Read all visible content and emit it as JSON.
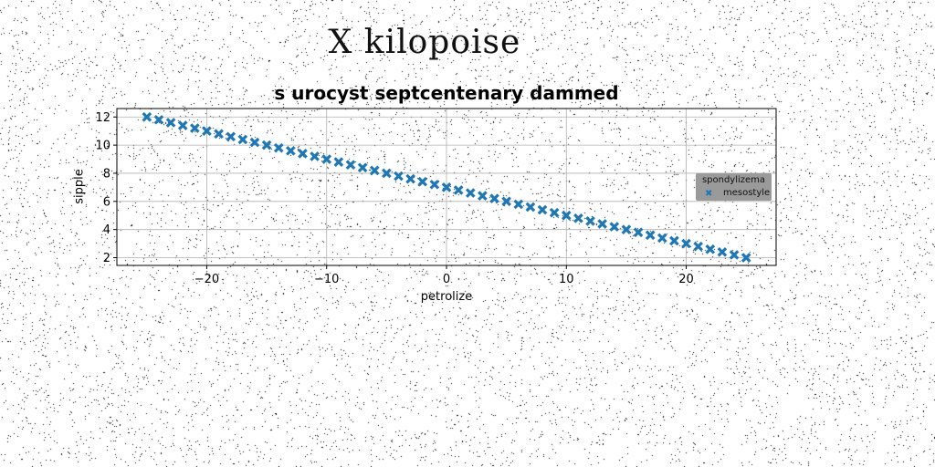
{
  "chart_data": {
    "type": "scatter",
    "suptitle": "X kilopoise",
    "title": "s urocyst septcentenary dammed",
    "xlabel": "petrolize",
    "ylabel": "sipple",
    "xlim": [
      -27.5,
      27.5
    ],
    "ylim": [
      1.45,
      12.6
    ],
    "xticks": [
      -20,
      -10,
      0,
      10,
      20
    ],
    "xtick_labels": [
      "−20",
      "−10",
      "0",
      "10",
      "20"
    ],
    "yticks": [
      2,
      4,
      6,
      8,
      10,
      12
    ],
    "ytick_labels": [
      "2",
      "4",
      "6",
      "8",
      "10",
      "12"
    ],
    "grid": true,
    "legend": {
      "title": "spondylizema",
      "placement": "center-right",
      "entries": [
        "mesostyle"
      ]
    },
    "series": [
      {
        "name": "mesostyle",
        "marker": "X",
        "color": "#1f77b4",
        "relation": "y = 7 - 0.2x",
        "x": [
          -25.0,
          -24.0,
          -23.0,
          -22.0,
          -21.0,
          -20.0,
          -19.0,
          -18.0,
          -17.0,
          -16.0,
          -15.0,
          -14.0,
          -13.0,
          -12.0,
          -11.0,
          -10.0,
          -9.0,
          -8.0,
          -7.0,
          -6.0,
          -5.0,
          -4.0,
          -3.0,
          -2.0,
          -1.0,
          0.0,
          1.0,
          2.0,
          3.0,
          4.0,
          5.0,
          6.0,
          7.0,
          8.0,
          9.0,
          10.0,
          11.0,
          12.0,
          13.0,
          14.0,
          15.0,
          16.0,
          17.0,
          18.0,
          19.0,
          20.0,
          21.0,
          22.0,
          23.0,
          24.0,
          25.0
        ],
        "y": [
          12.0,
          11.8,
          11.6,
          11.4,
          11.2,
          11.0,
          10.8,
          10.6,
          10.4,
          10.2,
          10.0,
          9.8,
          9.6,
          9.4,
          9.2,
          9.0,
          8.8,
          8.6,
          8.4,
          8.2,
          8.0,
          7.8,
          7.6,
          7.4,
          7.2,
          7.0,
          6.8,
          6.6,
          6.4,
          6.2,
          6.0,
          5.8,
          5.6,
          5.4,
          5.2,
          5.0,
          4.8,
          4.6,
          4.4,
          4.2,
          4.0,
          3.8,
          3.6,
          3.4,
          3.2,
          3.0,
          2.8,
          2.6,
          2.4,
          2.2,
          2.0
        ]
      }
    ]
  }
}
